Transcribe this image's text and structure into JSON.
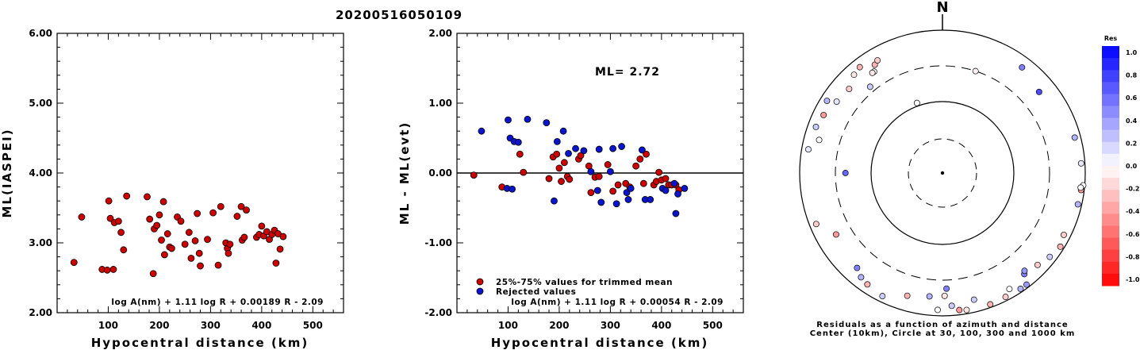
{
  "colors": {
    "red": "#cc0000",
    "blue": "#0a14cc",
    "text": "#000000"
  },
  "chart_data": [
    {
      "type": "scatter",
      "title": "20200516050109",
      "xlabel": "Hypocentral distance (km)",
      "ylabel": "ML(IASPEI)",
      "xlim": [
        0,
        560
      ],
      "ylim": [
        2.0,
        6.0
      ],
      "xticks": [
        "100",
        "200",
        "300",
        "400",
        "500"
      ],
      "yticks": [
        "2.00",
        "3.00",
        "4.00",
        "5.00",
        "6.00"
      ],
      "annotation": "log A(nm) + 1.11 log R + 0.00189 R - 2.09",
      "series": [
        {
          "color": "red",
          "points": [
            [
              33,
              2.72
            ],
            [
              48,
              3.37
            ],
            [
              88,
              2.62
            ],
            [
              98,
              2.61
            ],
            [
              101,
              3.6
            ],
            [
              104,
              3.35
            ],
            [
              110,
              2.62
            ],
            [
              112,
              3.29
            ],
            [
              120,
              3.31
            ],
            [
              125,
              3.15
            ],
            [
              130,
              2.9
            ],
            [
              136,
              3.67
            ],
            [
              176,
              3.66
            ],
            [
              181,
              3.34
            ],
            [
              188,
              2.56
            ],
            [
              190,
              3.2
            ],
            [
              195,
              3.25
            ],
            [
              200,
              3.4
            ],
            [
              204,
              3.04
            ],
            [
              208,
              3.59
            ],
            [
              210,
              2.83
            ],
            [
              216,
              3.13
            ],
            [
              220,
              2.94
            ],
            [
              224,
              2.92
            ],
            [
              235,
              3.37
            ],
            [
              242,
              3.31
            ],
            [
              250,
              2.98
            ],
            [
              258,
              3.15
            ],
            [
              262,
              2.78
            ],
            [
              270,
              3.03
            ],
            [
              274,
              3.42
            ],
            [
              278,
              2.85
            ],
            [
              280,
              2.67
            ],
            [
              294,
              3.05
            ],
            [
              305,
              3.43
            ],
            [
              315,
              2.68
            ],
            [
              320,
              3.52
            ],
            [
              330,
              3.0
            ],
            [
              333,
              2.92
            ],
            [
              335,
              2.85
            ],
            [
              338,
              2.98
            ],
            [
              352,
              3.38
            ],
            [
              360,
              3.52
            ],
            [
              362,
              3.04
            ],
            [
              366,
              3.08
            ],
            [
              370,
              3.47
            ],
            [
              390,
              3.08
            ],
            [
              395,
              3.12
            ],
            [
              400,
              3.24
            ],
            [
              404,
              3.1
            ],
            [
              410,
              3.16
            ],
            [
              415,
              3.05
            ],
            [
              420,
              3.12
            ],
            [
              425,
              3.18
            ],
            [
              428,
              2.71
            ],
            [
              432,
              3.13
            ],
            [
              436,
              2.91
            ],
            [
              442,
              3.09
            ]
          ]
        }
      ]
    },
    {
      "type": "scatter",
      "xlabel": "Hypocentral distance (km)",
      "ylabel": "ML - ML(evt)",
      "xlim": [
        0,
        560
      ],
      "ylim": [
        -2.0,
        2.0
      ],
      "xticks": [
        "100",
        "200",
        "300",
        "400",
        "500"
      ],
      "yticks": [
        "-2.00",
        "-1.00",
        "0.00",
        "1.00",
        "2.00"
      ],
      "ml_label": "ML= 2.72",
      "legend": [
        "25%-75% values for trimmed mean",
        "Rejected values"
      ],
      "annotation": "log A(nm) + 1.11 log R + 0.00054 R - 2.09",
      "series": [
        {
          "name": "25%-75% values for trimmed mean",
          "color": "red",
          "points": [
            [
              33,
              -0.03
            ],
            [
              88,
              -0.2
            ],
            [
              123,
              0.27
            ],
            [
              130,
              0.01
            ],
            [
              180,
              -0.08
            ],
            [
              188,
              0.23
            ],
            [
              195,
              0.27
            ],
            [
              200,
              0.07
            ],
            [
              204,
              -0.12
            ],
            [
              210,
              0.15
            ],
            [
              216,
              -0.05
            ],
            [
              220,
              -0.09
            ],
            [
              238,
              0.2
            ],
            [
              242,
              0.25
            ],
            [
              258,
              0.1
            ],
            [
              262,
              -0.28
            ],
            [
              270,
              -0.06
            ],
            [
              278,
              -0.05
            ],
            [
              295,
              0.12
            ],
            [
              305,
              -0.26
            ],
            [
              315,
              -0.17
            ],
            [
              330,
              -0.15
            ],
            [
              338,
              -0.2
            ],
            [
              350,
              0.1
            ],
            [
              358,
              0.2
            ],
            [
              365,
              -0.15
            ],
            [
              370,
              0.27
            ],
            [
              385,
              -0.17
            ],
            [
              390,
              -0.12
            ],
            [
              395,
              0.01
            ],
            [
              400,
              -0.1
            ],
            [
              408,
              -0.08
            ],
            [
              414,
              -0.17
            ],
            [
              420,
              -0.17
            ],
            [
              428,
              -0.17
            ],
            [
              434,
              -0.24
            ]
          ]
        },
        {
          "name": "Rejected values",
          "color": "blue",
          "points": [
            [
              48,
              0.6
            ],
            [
              98,
              -0.22
            ],
            [
              100,
              0.76
            ],
            [
              104,
              0.5
            ],
            [
              108,
              -0.23
            ],
            [
              112,
              0.45
            ],
            [
              120,
              0.44
            ],
            [
              138,
              0.77
            ],
            [
              175,
              0.72
            ],
            [
              190,
              -0.4
            ],
            [
              196,
              0.45
            ],
            [
              208,
              0.6
            ],
            [
              218,
              0.28
            ],
            [
              232,
              0.35
            ],
            [
              248,
              0.32
            ],
            [
              262,
              0.02
            ],
            [
              275,
              -0.25
            ],
            [
              278,
              0.34
            ],
            [
              282,
              -0.42
            ],
            [
              300,
              0.02
            ],
            [
              305,
              0.35
            ],
            [
              312,
              -0.44
            ],
            [
              322,
              0.38
            ],
            [
              332,
              -0.28
            ],
            [
              335,
              -0.38
            ],
            [
              340,
              -0.22
            ],
            [
              362,
              0.33
            ],
            [
              368,
              -0.38
            ],
            [
              378,
              -0.38
            ],
            [
              402,
              -0.22
            ],
            [
              408,
              -0.25
            ],
            [
              425,
              -0.15
            ],
            [
              428,
              -0.58
            ],
            [
              432,
              -0.3
            ],
            [
              445,
              -0.22
            ]
          ]
        }
      ]
    },
    {
      "type": "polar-scatter",
      "north_label": "N",
      "caption_line1": "Residuals as a function of azimuth and distance",
      "caption_line2": "Center (10km), Circle at 30, 100, 300 and 1000 km",
      "colorbar_title": "Res",
      "colorbar_ticks": [
        "1.0",
        "0.8",
        "0.6",
        "0.4",
        "0.2",
        "0.0",
        "-0.2",
        "-0.4",
        "-0.6",
        "-0.8",
        "-1.0"
      ],
      "points": [
        [
          18,
          300,
          -0.05
        ],
        [
          340,
          110,
          0.0
        ],
        [
          322,
          750,
          -0.3
        ],
        [
          328,
          600,
          -0.3
        ],
        [
          312,
          560,
          -0.2
        ],
        [
          318,
          700,
          -0.1
        ],
        [
          326,
          500,
          0.0
        ],
        [
          320,
          360,
          0.2
        ],
        [
          325,
          500,
          -0.1
        ],
        [
          330,
          650,
          -0.2
        ],
        [
          302,
          800,
          0.3
        ],
        [
          304,
          600,
          0.1
        ],
        [
          296,
          700,
          -0.4
        ],
        [
          290,
          760,
          0.2
        ],
        [
          285,
          600,
          0.0
        ],
        [
          280,
          800,
          0.1
        ],
        [
          248,
          800,
          -0.2
        ],
        [
          240,
          510,
          -0.4
        ],
        [
          222,
          600,
          0.5
        ],
        [
          218,
          700,
          0.3
        ],
        [
          214,
          750,
          -0.3
        ],
        [
          206,
          820,
          0.2
        ],
        [
          196,
          600,
          -0.3
        ],
        [
          182,
          820,
          0.0
        ],
        [
          179,
          510,
          -0.1
        ],
        [
          176,
          720,
          0.2
        ],
        [
          173,
          850,
          -0.4
        ],
        [
          170,
          880,
          -0.1
        ],
        [
          166,
          660,
          0.2
        ],
        [
          160,
          900,
          -0.3
        ],
        [
          153,
          880,
          -0.2
        ],
        [
          150,
          740,
          0.0
        ],
        [
          146,
          900,
          0.3
        ],
        [
          143,
          900,
          0.4
        ],
        [
          141,
          650,
          0.5
        ],
        [
          140,
          600,
          0.4
        ],
        [
          134,
          700,
          -0.2
        ],
        [
          128,
          800,
          0.2
        ],
        [
          122,
          880,
          -0.3
        ],
        [
          117,
          800,
          -0.2
        ],
        [
          103,
          880,
          0.3
        ],
        [
          97,
          900,
          -0.4
        ],
        [
          95,
          950,
          0.0
        ],
        [
          96,
          880,
          0.0
        ],
        [
          86,
          880,
          0.1
        ],
        [
          75,
          820,
          0.3
        ],
        [
          50,
          570,
          0.7
        ],
        [
          37,
          700,
          0.5
        ],
        [
          270,
          220,
          0.6
        ],
        [
          178,
          400,
          0.5
        ],
        [
          186,
          530,
          0.3
        ]
      ]
    }
  ]
}
